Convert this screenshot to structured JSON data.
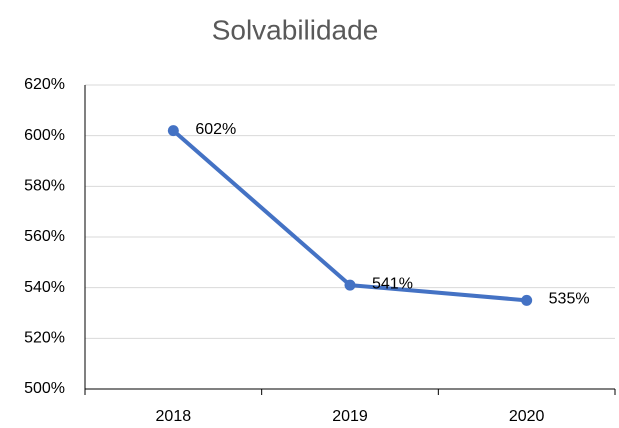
{
  "chart_data": {
    "type": "line",
    "title": "Solvabilidade",
    "categories": [
      "2018",
      "2019",
      "2020"
    ],
    "values": [
      602,
      541,
      535
    ],
    "value_labels": [
      "602%",
      "541%",
      "535%"
    ],
    "color": "#4472c4",
    "ylim": [
      500,
      620
    ],
    "yticks": [
      {
        "value": 500,
        "label": "500%"
      },
      {
        "value": 520,
        "label": "520%"
      },
      {
        "value": 540,
        "label": "540%"
      },
      {
        "value": 560,
        "label": "560%"
      },
      {
        "value": 580,
        "label": "580%"
      },
      {
        "value": 600,
        "label": "600%"
      },
      {
        "value": 620,
        "label": "620%"
      }
    ],
    "grid": true
  }
}
